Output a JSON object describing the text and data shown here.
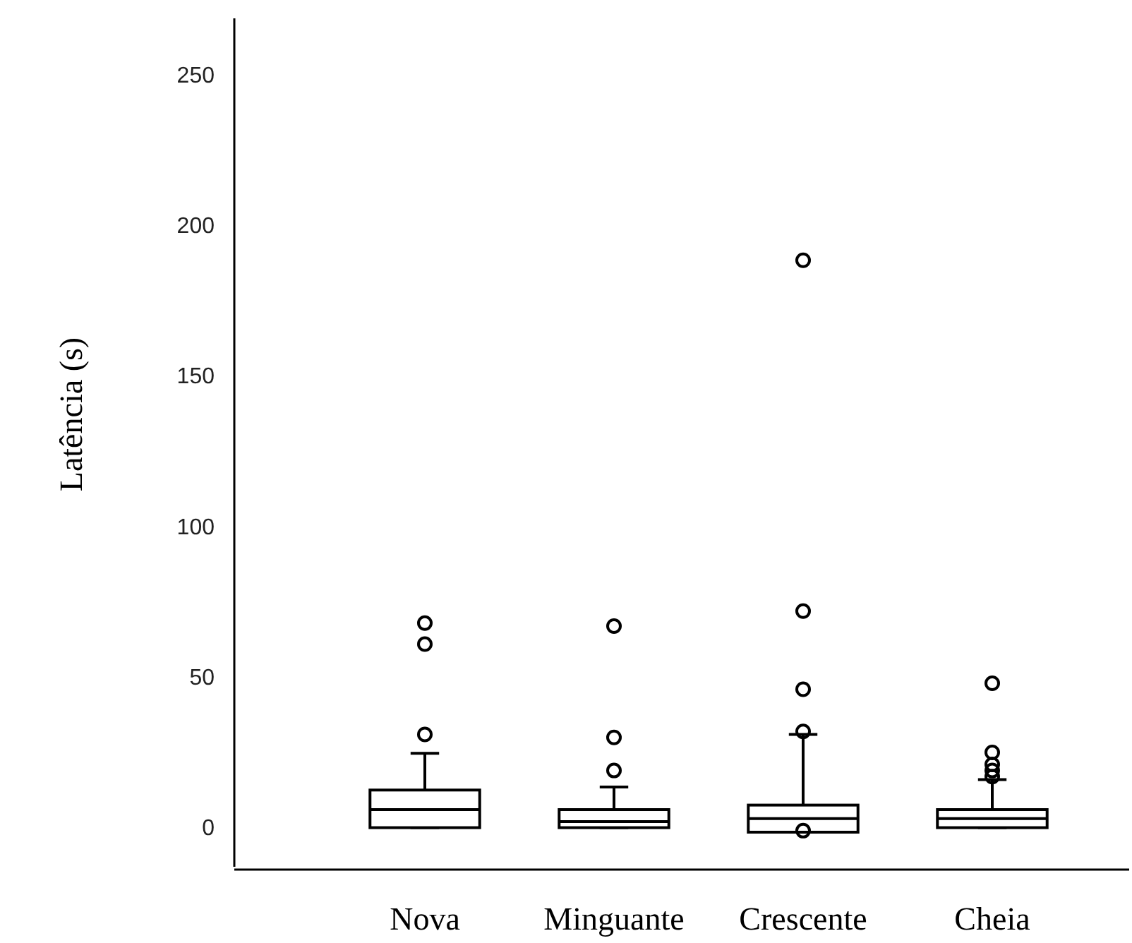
{
  "chart_data": {
    "type": "box",
    "ylabel": "Latência (s)",
    "categories": [
      "Nova",
      "Minguante",
      "Crescente",
      "Cheia"
    ],
    "boxes": [
      {
        "low": 0,
        "q1": 0,
        "median": 6,
        "q3": 12.5,
        "high": 24.7,
        "outliers": [
          31,
          61,
          68
        ]
      },
      {
        "low": 0,
        "q1": 0,
        "median": 2,
        "q3": 6,
        "high": 13.5,
        "outliers": [
          19,
          30,
          67
        ]
      },
      {
        "low": -1.5,
        "q1": -1.5,
        "median": 3,
        "q3": 7.5,
        "high": 31,
        "outliers": [
          -1,
          32,
          46,
          72,
          188.6
        ]
      },
      {
        "low": 0,
        "q1": 0,
        "median": 3,
        "q3": 6,
        "high": 16,
        "outliers": [
          17,
          19,
          21,
          25,
          48
        ]
      }
    ],
    "ylim": [
      -13,
      269
    ],
    "yticks": [
      0,
      50,
      100,
      150,
      200,
      250
    ],
    "grid": false
  }
}
